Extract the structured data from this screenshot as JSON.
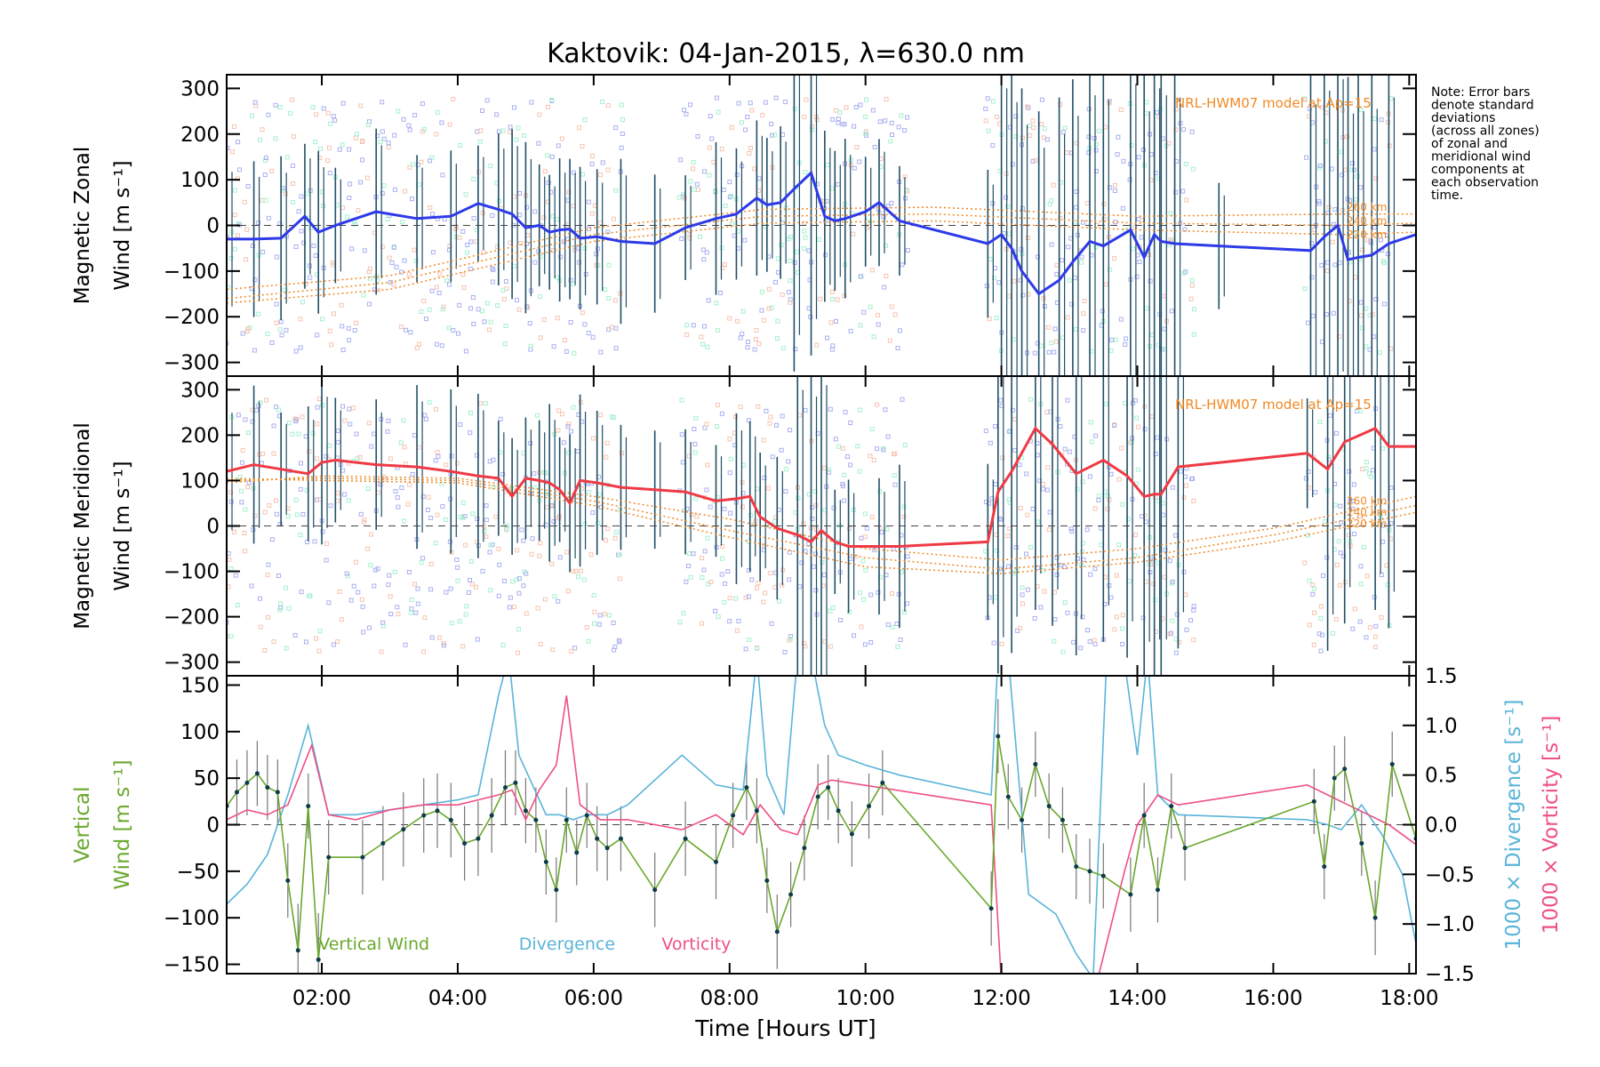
{
  "title": "Kaktovik: 04-Jan-2015, λ=630.0 nm",
  "note": [
    "Note: Error bars",
    "denote standard",
    "deviations",
    "(across all zones)",
    "of zonal and",
    "meridional wind",
    "components at",
    "each observation",
    "time."
  ],
  "xaxis": {
    "label": "Time [Hours UT]",
    "range": [
      0.6,
      18.1
    ],
    "ticks": [
      {
        "v": 2,
        "t": "02:00"
      },
      {
        "v": 4,
        "t": "04:00"
      },
      {
        "v": 6,
        "t": "06:00"
      },
      {
        "v": 8,
        "t": "08:00"
      },
      {
        "v": 10,
        "t": "10:00"
      },
      {
        "v": 12,
        "t": "12:00"
      },
      {
        "v": 14,
        "t": "14:00"
      },
      {
        "v": 16,
        "t": "16:00"
      },
      {
        "v": 18,
        "t": "18:00"
      }
    ]
  },
  "colors": {
    "zonal": "#2d3ae8",
    "meridional": "#ef3a45",
    "vertical": "#6aa82e",
    "divergence": "#5ab4d8",
    "vorticity": "#ee4f86",
    "model": "#f08a25",
    "errorbar": "#1f4e66",
    "zonal_pts": "#aab0f0",
    "green_pts": "#a6f0cf"
  },
  "chart_data": [
    {
      "type": "line",
      "panel": "zonal",
      "ylabel_line1": "Magnetic Zonal",
      "ylabel_line2": "Wind [m s⁻¹]",
      "ylim": [
        -330,
        330
      ],
      "yticks": [
        -300,
        -200,
        -100,
        0,
        100,
        200,
        300
      ],
      "model_label": "NRL-HWM07 model at Ap=15",
      "altitudes": [
        "260 km",
        "240 km",
        "220 km"
      ],
      "x": [
        0.6,
        1.0,
        1.4,
        1.75,
        1.95,
        2.2,
        2.8,
        3.4,
        3.9,
        4.3,
        4.6,
        4.8,
        5.0,
        5.2,
        5.35,
        5.5,
        5.65,
        5.8,
        6.05,
        6.4,
        6.9,
        7.35,
        7.8,
        8.1,
        8.4,
        8.55,
        8.75,
        8.95,
        9.2,
        9.4,
        9.55,
        9.7,
        10.0,
        10.2,
        10.5,
        11.8,
        12.0,
        12.15,
        12.3,
        12.55,
        12.85,
        13.05,
        13.3,
        13.5,
        13.9,
        14.1,
        14.25,
        14.35,
        14.55,
        15.2,
        16.55,
        16.75,
        16.95,
        17.1,
        17.25,
        17.45,
        17.7,
        18.1
      ],
      "y": [
        -30,
        -30,
        -28,
        20,
        -15,
        0,
        30,
        15,
        20,
        48,
        35,
        25,
        -5,
        0,
        -15,
        -10,
        -8,
        -28,
        -25,
        -35,
        -40,
        -5,
        15,
        25,
        60,
        45,
        50,
        80,
        115,
        20,
        10,
        15,
        30,
        50,
        10,
        -40,
        -20,
        -50,
        -100,
        -150,
        -120,
        -80,
        -35,
        -45,
        -10,
        -70,
        -20,
        -35,
        -40,
        -45,
        -55,
        -25,
        0,
        -75,
        -70,
        -65,
        -40,
        -20
      ],
      "series": [
        {
          "name": "260 km",
          "x": [
            0.6,
            3,
            6,
            8.5,
            11,
            14,
            17,
            18.1
          ],
          "y": [
            -140,
            -110,
            -5,
            35,
            40,
            20,
            25,
            25
          ]
        },
        {
          "name": "240 km",
          "x": [
            0.6,
            3,
            6,
            8.5,
            11,
            14,
            17,
            18.1
          ],
          "y": [
            -160,
            -125,
            -20,
            20,
            25,
            5,
            0,
            5
          ]
        },
        {
          "name": "220 km",
          "x": [
            0.6,
            3,
            6,
            8.5,
            11,
            14,
            17,
            18.1
          ],
          "y": [
            -170,
            -140,
            -35,
            5,
            10,
            -10,
            -20,
            -15
          ]
        }
      ]
    },
    {
      "type": "line",
      "panel": "meridional",
      "ylabel_line1": "Magnetic Meridional",
      "ylabel_line2": "Wind [m s⁻¹]",
      "ylim": [
        -330,
        330
      ],
      "yticks": [
        -300,
        -200,
        -100,
        0,
        100,
        200,
        300
      ],
      "model_label": "NRL-HWM07 model at Ap=15",
      "altitudes": [
        "260 km",
        "240 km",
        "220 km"
      ],
      "x": [
        0.6,
        1.0,
        1.4,
        1.8,
        2.0,
        2.2,
        2.8,
        3.4,
        3.9,
        4.3,
        4.6,
        4.8,
        5.0,
        5.2,
        5.35,
        5.5,
        5.65,
        5.8,
        6.05,
        6.4,
        6.9,
        7.35,
        7.8,
        8.1,
        8.3,
        8.45,
        8.7,
        9.0,
        9.2,
        9.35,
        9.55,
        9.75,
        10.2,
        10.5,
        11.8,
        11.95,
        12.15,
        12.5,
        12.75,
        13.1,
        13.5,
        13.85,
        14.1,
        14.25,
        14.35,
        14.6,
        16.5,
        16.8,
        17.05,
        17.5,
        17.7,
        18.1
      ],
      "y": [
        120,
        135,
        125,
        115,
        140,
        145,
        135,
        130,
        120,
        110,
        105,
        65,
        105,
        100,
        95,
        80,
        50,
        100,
        95,
        85,
        80,
        75,
        55,
        60,
        65,
        20,
        -5,
        -20,
        -35,
        -10,
        -35,
        -45,
        -45,
        -45,
        -35,
        75,
        120,
        215,
        180,
        115,
        145,
        110,
        65,
        70,
        70,
        130,
        160,
        125,
        185,
        215,
        175,
        175
      ],
      "series": [
        {
          "name": "260 km",
          "x": [
            0.6,
            2,
            4,
            6,
            8,
            10,
            12,
            14,
            16,
            18.1
          ],
          "y": [
            95,
            110,
            105,
            65,
            15,
            -50,
            -75,
            -50,
            -5,
            65
          ]
        },
        {
          "name": "240 km",
          "x": [
            0.6,
            2,
            4,
            6,
            8,
            10,
            12,
            14,
            16,
            18.1
          ],
          "y": [
            100,
            105,
            100,
            55,
            -10,
            -70,
            -95,
            -70,
            -20,
            45
          ]
        },
        {
          "name": "220 km",
          "x": [
            0.6,
            2,
            4,
            6,
            8,
            10,
            12,
            14,
            16,
            18.1
          ],
          "y": [
            105,
            100,
            95,
            45,
            -25,
            -90,
            -105,
            -80,
            -35,
            30
          ]
        }
      ]
    },
    {
      "type": "line",
      "panel": "vertical",
      "ylabel_line1": "Vertical",
      "ylabel_line2": "Wind [m s⁻¹]",
      "ylim": [
        -160,
        160
      ],
      "yticks": [
        -150,
        -100,
        -50,
        0,
        50,
        100,
        150
      ],
      "y2lim": [
        -1.5,
        1.5
      ],
      "y2ticks": [
        -1.5,
        -1.0,
        -0.5,
        0.0,
        0.5,
        1.0,
        1.5
      ],
      "y2ticklabels": [
        "−1.5",
        "−1.0",
        "−0.5",
        "0.0",
        "0.5",
        "1.0",
        "1.5"
      ],
      "y2label_div": "1000 × Divergence [s⁻¹]",
      "y2label_vort": "1000 × Vorticity [s⁻¹]",
      "legend": [
        {
          "name": "Vertical Wind",
          "key": "vertical"
        },
        {
          "name": "Divergence",
          "key": "divergence"
        },
        {
          "name": "Vorticity",
          "key": "vorticity"
        }
      ],
      "vertical": {
        "x": [
          0.6,
          0.75,
          0.9,
          1.05,
          1.2,
          1.35,
          1.5,
          1.65,
          1.8,
          1.95,
          2.1,
          2.6,
          2.9,
          3.2,
          3.5,
          3.7,
          3.9,
          4.1,
          4.3,
          4.5,
          4.7,
          4.85,
          5.0,
          5.15,
          5.3,
          5.45,
          5.6,
          5.75,
          5.9,
          6.05,
          6.2,
          6.4,
          6.9,
          7.35,
          7.8,
          8.05,
          8.25,
          8.4,
          8.55,
          8.7,
          8.9,
          9.1,
          9.3,
          9.45,
          9.6,
          9.8,
          10.05,
          10.25,
          11.85,
          11.95,
          12.1,
          12.3,
          12.5,
          12.7,
          12.9,
          13.1,
          13.3,
          13.5,
          13.9,
          14.1,
          14.3,
          14.5,
          14.7,
          16.6,
          16.75,
          16.9,
          17.05,
          17.3,
          17.5,
          17.75,
          18.1
        ],
        "y": [
          20,
          35,
          45,
          55,
          40,
          35,
          -60,
          -135,
          20,
          -145,
          -35,
          -35,
          -20,
          -5,
          10,
          15,
          5,
          -20,
          -15,
          10,
          40,
          45,
          15,
          5,
          -40,
          -70,
          5,
          -30,
          10,
          -15,
          -25,
          -15,
          -70,
          -15,
          -40,
          10,
          40,
          15,
          -60,
          -115,
          -75,
          -25,
          30,
          40,
          15,
          -10,
          20,
          45,
          -90,
          95,
          30,
          5,
          65,
          20,
          5,
          -45,
          -50,
          -55,
          -75,
          10,
          -70,
          20,
          -25,
          25,
          -45,
          50,
          60,
          -20,
          -100,
          65,
          -15
        ],
        "err": [
          35,
          35,
          35,
          35,
          35,
          35,
          40,
          50,
          35,
          50,
          40,
          40,
          40,
          40,
          40,
          40,
          40,
          40,
          40,
          40,
          40,
          35,
          35,
          35,
          35,
          35,
          35,
          35,
          35,
          35,
          35,
          35,
          40,
          40,
          40,
          35,
          35,
          35,
          35,
          40,
          35,
          35,
          35,
          35,
          35,
          35,
          35,
          35,
          40,
          40,
          35,
          35,
          35,
          35,
          35,
          35,
          35,
          35,
          40,
          35,
          35,
          35,
          35,
          35,
          35,
          35,
          35,
          35,
          40,
          35,
          35
        ]
      },
      "divergence": {
        "x": [
          0.6,
          0.9,
          1.2,
          1.5,
          1.8,
          2.1,
          2.5,
          3.0,
          3.5,
          4.0,
          4.3,
          4.6,
          4.75,
          4.9,
          5.1,
          5.3,
          5.5,
          5.7,
          5.9,
          6.2,
          6.5,
          7.3,
          7.8,
          8.2,
          8.4,
          8.55,
          8.8,
          9.0,
          9.2,
          9.4,
          9.6,
          10.0,
          10.5,
          11.85,
          11.95,
          12.1,
          12.4,
          12.8,
          13.1,
          13.35,
          13.55,
          13.8,
          14.0,
          14.15,
          14.3,
          14.6,
          16.5,
          16.8,
          17.0,
          17.3,
          17.6,
          17.9,
          18.1
        ],
        "y": [
          -0.8,
          -0.6,
          -0.3,
          0.3,
          1.0,
          0.1,
          0.1,
          0.15,
          0.2,
          0.25,
          0.3,
          1.3,
          1.7,
          0.7,
          0.4,
          0.1,
          0.1,
          0.05,
          0.1,
          0.1,
          0.2,
          0.7,
          0.4,
          0.35,
          1.7,
          0.5,
          0.1,
          1.7,
          1.7,
          1.0,
          0.7,
          0.6,
          0.5,
          0.3,
          1.7,
          1.7,
          -0.7,
          -0.9,
          -1.3,
          -1.55,
          1.7,
          1.7,
          0.7,
          1.7,
          0.3,
          0.1,
          0.05,
          0.0,
          -0.05,
          0.2,
          -0.1,
          -0.5,
          -1.2
        ]
      },
      "vorticity": {
        "x": [
          0.6,
          0.9,
          1.2,
          1.5,
          1.85,
          2.1,
          2.5,
          3.0,
          3.5,
          4.0,
          4.3,
          4.6,
          4.8,
          5.0,
          5.2,
          5.45,
          5.6,
          5.8,
          6.1,
          6.5,
          7.3,
          7.8,
          8.2,
          8.45,
          8.75,
          9.0,
          9.3,
          9.5,
          11.85,
          12.0,
          12.2,
          13.0,
          13.4,
          13.8,
          14.0,
          14.3,
          14.6,
          16.5,
          16.8,
          17.1,
          17.4,
          17.7,
          18.1
        ],
        "y": [
          0.05,
          0.15,
          0.1,
          0.2,
          0.8,
          0.1,
          0.05,
          0.15,
          0.2,
          0.2,
          0.25,
          0.3,
          0.35,
          0.05,
          0.35,
          0.6,
          1.3,
          0.2,
          0.05,
          0.05,
          -0.05,
          0.1,
          -0.1,
          0.2,
          -0.05,
          -0.1,
          0.4,
          0.45,
          0.2,
          -1.6,
          -1.8,
          -1.6,
          -1.6,
          -0.5,
          0.0,
          0.3,
          0.2,
          0.4,
          0.3,
          0.2,
          0.1,
          0.0,
          -0.2
        ]
      }
    }
  ]
}
